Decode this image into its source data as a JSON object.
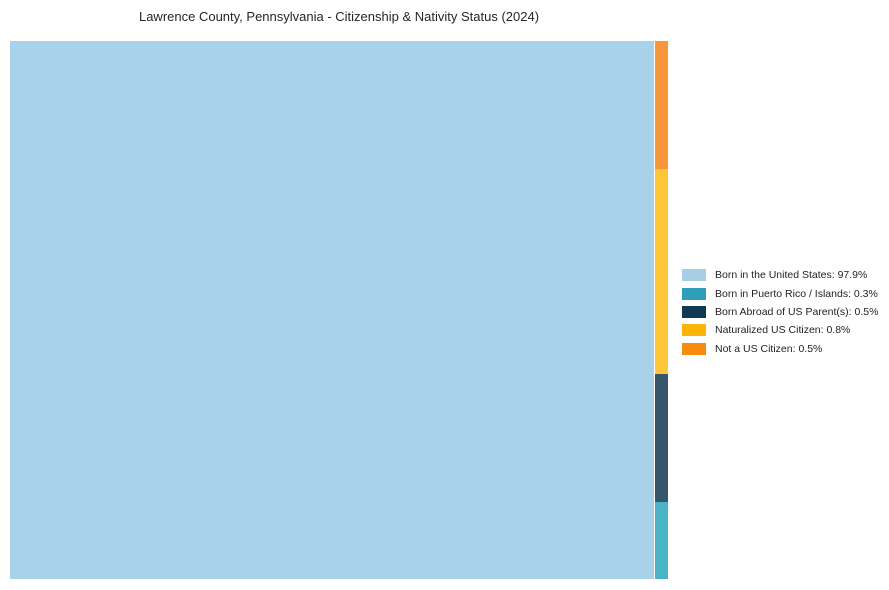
{
  "header": {
    "title": "Lawrence County, Pennsylvania - Citizenship & Nativity Status (2024)"
  },
  "chart_data": {
    "type": "treemap",
    "title": "Lawrence County, Pennsylvania - Citizenship & Nativity Status (2024)",
    "unit": "%",
    "categories": [
      "Born in the United States",
      "Born in Puerto Rico / Islands",
      "Born Abroad of US Parent(s)",
      "Naturalized US Citizen",
      "Not a US Citizen"
    ],
    "values": [
      97.9,
      0.3,
      0.5,
      0.8,
      0.5
    ],
    "series": [
      {
        "label": "Born in the United States",
        "value": 97.9,
        "legend_color": "#A6CEE4",
        "tile_color": "#A7D2E9"
      },
      {
        "label": "Born in Puerto Rico / Islands",
        "value": 0.3,
        "legend_color": "#2E9FB9",
        "tile_color": "#4AB3C6"
      },
      {
        "label": "Born Abroad of US Parent(s)",
        "value": 0.5,
        "legend_color": "#0F3A53",
        "tile_color": "#36566B"
      },
      {
        "label": "Naturalized US Citizen",
        "value": 0.8,
        "legend_color": "#FCB40B",
        "tile_color": "#FDC538"
      },
      {
        "label": "Not a US Citizen",
        "value": 0.5,
        "legend_color": "#F68B0E",
        "tile_color": "#F7953B"
      }
    ],
    "layout_hints": {
      "legend_position": "right-middle",
      "main_tile_position": "left",
      "strip_order_top_to_bottom": [
        "Not a US Citizen",
        "Naturalized US Citizen",
        "Born Abroad of US Parent(s)",
        "Born in Puerto Rico / Islands"
      ],
      "gridlines": false,
      "axes": false,
      "background": "#ffffff"
    }
  },
  "legend": {
    "items": [
      {
        "label": "Born in the United States: 97.9%",
        "color": "#A6CEE4"
      },
      {
        "label": "Born in Puerto Rico / Islands: 0.3%",
        "color": "#2E9FB9"
      },
      {
        "label": "Born Abroad of US Parent(s): 0.5%",
        "color": "#0F3A53"
      },
      {
        "label": "Naturalized US Citizen: 0.8%",
        "color": "#FCB40B"
      },
      {
        "label": "Not a US Citizen: 0.5%",
        "color": "#F68B0E"
      }
    ]
  }
}
